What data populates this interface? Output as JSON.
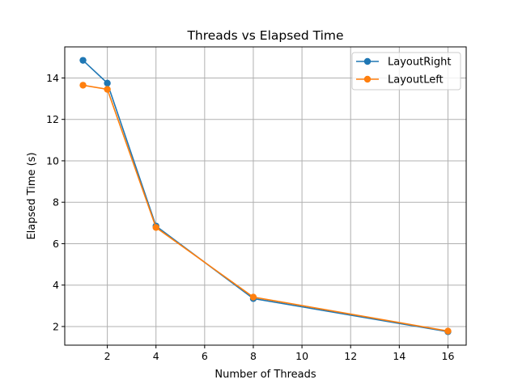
{
  "chart_data": {
    "type": "line",
    "title": "Threads vs Elapsed Time",
    "xlabel": "Number of Threads",
    "ylabel": "Elapsed Time (s)",
    "xlim": [
      0.25,
      16.75
    ],
    "ylim": [
      1.1,
      15.5
    ],
    "xticks": [
      2,
      4,
      6,
      8,
      10,
      12,
      14,
      16
    ],
    "yticks": [
      2,
      4,
      6,
      8,
      10,
      12,
      14
    ],
    "grid": true,
    "legend_position": "top-right",
    "x": [
      1,
      2,
      4,
      8,
      16
    ],
    "series": [
      {
        "name": "LayoutRight",
        "color": "#1f77b4",
        "values": [
          14.85,
          13.75,
          6.85,
          3.35,
          1.75
        ]
      },
      {
        "name": "LayoutLeft",
        "color": "#ff7f0e",
        "values": [
          13.65,
          13.45,
          6.78,
          3.42,
          1.78
        ]
      }
    ]
  }
}
